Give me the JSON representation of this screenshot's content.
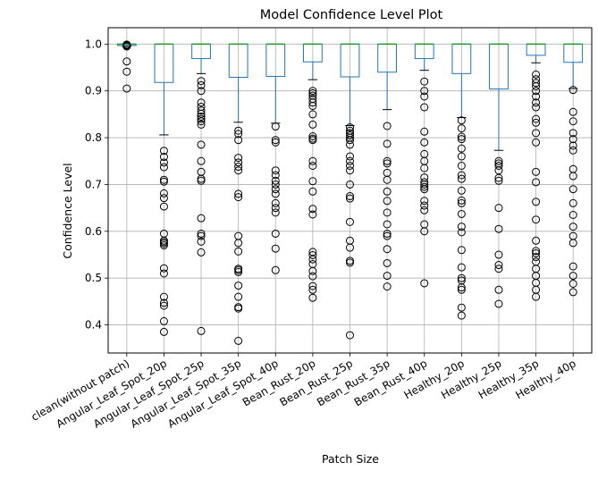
{
  "chart_data": {
    "type": "box",
    "title": "Model Confidence Level Plot",
    "xlabel": "Patch Size",
    "ylabel": "Confidence Level",
    "ylim": [
      0.34,
      1.035
    ],
    "yticks": [
      0.4,
      0.5,
      0.6,
      0.7,
      0.8,
      0.9,
      1.0
    ],
    "ytick_labels": [
      "0.4",
      "0.5",
      "0.6",
      "0.7",
      "0.8",
      "0.9",
      "1.0"
    ],
    "grid": true,
    "colors": {
      "box": "#1f77b4",
      "median": "#2ca02c",
      "whisker": "#000000",
      "grid": "#b0b0b0"
    },
    "categories": [
      "clean(without patch)",
      "Angular_Leaf_Spot_20p",
      "Angular_Leaf_Spot_25p",
      "Angular_Leaf_Spot_35p",
      "Angular_Leaf_Spot_40p",
      "Bean_Rust_20p",
      "Bean_Rust_25p",
      "Bean_Rust_35p",
      "Bean_Rust_40p",
      "Healthy_20p",
      "Healthy_25p",
      "Healthy_35p",
      "Healthy_40p"
    ],
    "boxes": [
      {
        "q1": 0.997,
        "median": 1.0,
        "q3": 1.0,
        "whisker_low": 0.995,
        "whisker_high": 1.0,
        "outliers": [
          0.999,
          0.998,
          0.997,
          0.996,
          0.995,
          0.963,
          0.941,
          0.905
        ]
      },
      {
        "q1": 0.918,
        "median": 1.0,
        "q3": 1.0,
        "whisker_low": 0.806,
        "whisker_high": 1.0,
        "outliers": [
          0.772,
          0.759,
          0.747,
          0.737,
          0.71,
          0.706,
          0.681,
          0.671,
          0.653,
          0.595,
          0.58,
          0.577,
          0.574,
          0.57,
          0.521,
          0.51,
          0.46,
          0.447,
          0.441,
          0.408,
          0.385
        ]
      },
      {
        "q1": 0.969,
        "median": 1.0,
        "q3": 1.0,
        "whisker_low": 0.937,
        "whisker_high": 1.0,
        "outliers": [
          0.921,
          0.912,
          0.9,
          0.875,
          0.866,
          0.858,
          0.851,
          0.845,
          0.84,
          0.835,
          0.828,
          0.785,
          0.75,
          0.727,
          0.712,
          0.708,
          0.628,
          0.595,
          0.59,
          0.578,
          0.555,
          0.387
        ]
      },
      {
        "q1": 0.929,
        "median": 1.0,
        "q3": 1.0,
        "whisker_low": 0.833,
        "whisker_high": 1.0,
        "outliers": [
          0.815,
          0.808,
          0.795,
          0.757,
          0.747,
          0.738,
          0.73,
          0.68,
          0.673,
          0.59,
          0.575,
          0.557,
          0.52,
          0.517,
          0.513,
          0.484,
          0.46,
          0.438,
          0.435,
          0.366
        ]
      },
      {
        "q1": 0.931,
        "median": 1.0,
        "q3": 1.0,
        "whisker_low": 0.831,
        "whisker_high": 1.0,
        "outliers": [
          0.824,
          0.795,
          0.79,
          0.73,
          0.72,
          0.708,
          0.7,
          0.69,
          0.68,
          0.66,
          0.65,
          0.64,
          0.595,
          0.563,
          0.517
        ]
      },
      {
        "q1": 0.962,
        "median": 1.0,
        "q3": 1.0,
        "whisker_low": 0.924,
        "whisker_high": 1.0,
        "outliers": [
          0.9,
          0.895,
          0.89,
          0.883,
          0.875,
          0.868,
          0.85,
          0.828,
          0.803,
          0.798,
          0.795,
          0.75,
          0.74,
          0.707,
          0.685,
          0.648,
          0.636,
          0.556,
          0.549,
          0.54,
          0.53,
          0.515,
          0.504,
          0.483,
          0.475,
          0.458
        ]
      },
      {
        "q1": 0.93,
        "median": 1.0,
        "q3": 1.0,
        "whisker_low": 0.826,
        "whisker_high": 1.0,
        "outliers": [
          0.822,
          0.815,
          0.81,
          0.805,
          0.8,
          0.795,
          0.785,
          0.76,
          0.75,
          0.74,
          0.73,
          0.7,
          0.675,
          0.67,
          0.62,
          0.58,
          0.565,
          0.537,
          0.533,
          0.378
        ]
      },
      {
        "q1": 0.94,
        "median": 1.0,
        "q3": 1.0,
        "whisker_low": 0.86,
        "whisker_high": 1.0,
        "outliers": [
          0.825,
          0.787,
          0.75,
          0.745,
          0.725,
          0.71,
          0.685,
          0.665,
          0.64,
          0.615,
          0.595,
          0.59,
          0.562,
          0.532,
          0.505,
          0.482
        ]
      },
      {
        "q1": 0.969,
        "median": 1.0,
        "q3": 1.0,
        "whisker_low": 0.944,
        "whisker_high": 1.0,
        "outliers": [
          0.92,
          0.9,
          0.888,
          0.865,
          0.813,
          0.79,
          0.765,
          0.75,
          0.735,
          0.715,
          0.705,
          0.7,
          0.695,
          0.69,
          0.665,
          0.655,
          0.645,
          0.615,
          0.6,
          0.489
        ]
      },
      {
        "q1": 0.937,
        "median": 1.0,
        "q3": 1.0,
        "whisker_low": 0.843,
        "whisker_high": 1.0,
        "outliers": [
          0.837,
          0.82,
          0.802,
          0.797,
          0.777,
          0.76,
          0.74,
          0.72,
          0.712,
          0.687,
          0.666,
          0.66,
          0.637,
          0.61,
          0.598,
          0.56,
          0.523,
          0.5,
          0.495,
          0.48,
          0.475,
          0.437,
          0.42
        ]
      },
      {
        "q1": 0.904,
        "median": 1.0,
        "q3": 1.0,
        "whisker_low": 0.773,
        "whisker_high": 1.0,
        "outliers": [
          0.75,
          0.745,
          0.74,
          0.73,
          0.714,
          0.708,
          0.65,
          0.605,
          0.55,
          0.528,
          0.52,
          0.475,
          0.445
        ]
      },
      {
        "q1": 0.976,
        "median": 1.0,
        "q3": 1.0,
        "whisker_low": 0.96,
        "whisker_high": 1.0,
        "outliers": [
          0.935,
          0.925,
          0.917,
          0.91,
          0.9,
          0.888,
          0.875,
          0.865,
          0.84,
          0.832,
          0.81,
          0.79,
          0.727,
          0.705,
          0.663,
          0.625,
          0.58,
          0.558,
          0.553,
          0.545,
          0.535,
          0.52,
          0.505,
          0.49,
          0.475,
          0.46
        ]
      },
      {
        "q1": 0.961,
        "median": 1.0,
        "q3": 1.0,
        "whisker_low": 0.905,
        "whisker_high": 1.0,
        "outliers": [
          0.902,
          0.855,
          0.835,
          0.81,
          0.797,
          0.783,
          0.773,
          0.733,
          0.718,
          0.69,
          0.66,
          0.635,
          0.61,
          0.59,
          0.575,
          0.525,
          0.505,
          0.488,
          0.47
        ]
      }
    ]
  }
}
